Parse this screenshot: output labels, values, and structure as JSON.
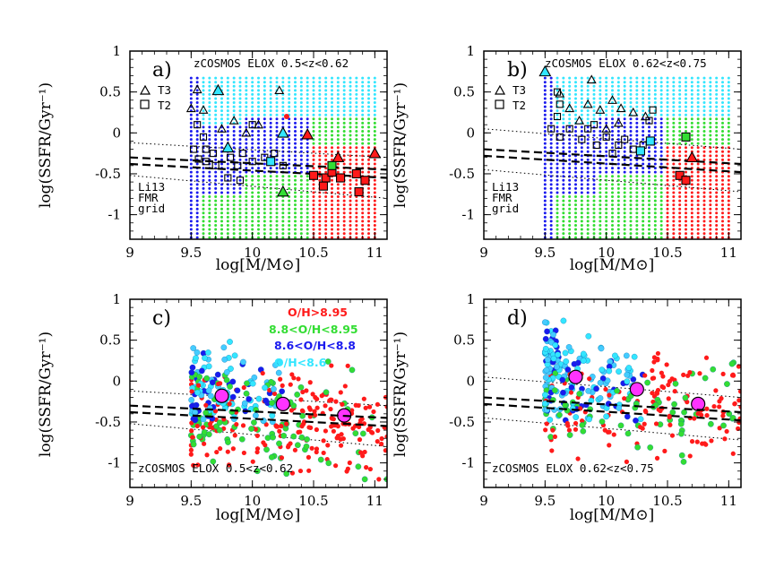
{
  "figure": {
    "xlabel": "log[M/M⊙]",
    "ylabel": "log(SSFR/Gyr⁻¹)"
  },
  "colors": {
    "red": "#ff1a1a",
    "green": "#33dd33",
    "blue": "#1a1aee",
    "cyan": "#33e6ff",
    "magenta": "#ff33ff",
    "lightblue": "#44ccff"
  },
  "chart_data": [
    {
      "id": "a",
      "type": "scatter",
      "panel_label": "a)",
      "title": "zCOSMOS ELOX 0.5<z<0.62",
      "legend": [
        {
          "symbol": "triangle",
          "label": "T3"
        },
        {
          "symbol": "square",
          "label": "T2"
        }
      ],
      "side_note": [
        "Li13",
        "FMR",
        "grid"
      ],
      "xlim": [
        9,
        11.1
      ],
      "ylim": [
        -1.3,
        1
      ],
      "xticks": [
        9,
        9.5,
        10,
        10.5,
        11
      ],
      "yticks": [
        -1,
        -0.5,
        0,
        0.5,
        1
      ],
      "xlabel": "log[M/M⊙]",
      "ylabel": "log(SSFR/Gyr⁻¹)",
      "grid": {
        "xmin": 9.5,
        "xmax": 11.0,
        "xstep": 0.05,
        "ymin": -1.28,
        "ymax": 0.68,
        "ystep": 0.05,
        "ranges": [
          {
            "x0": 9.5,
            "x1": 9.58,
            "color": "blue"
          },
          {
            "x0": 9.6,
            "x1": 9.9,
            "color": "green"
          },
          {
            "x0": 9.95,
            "x1": 10.5,
            "color": "mix"
          },
          {
            "x0": 10.5,
            "x1": 11.0,
            "color": "redgreen"
          }
        ]
      },
      "lines": {
        "dashed": [
          [
            9,
            -0.3,
            11.1,
            -0.45
          ],
          [
            9,
            -0.38,
            11.1,
            -0.55
          ]
        ],
        "dotted": [
          [
            9,
            -0.12,
            11.1,
            -0.3
          ],
          [
            9,
            -0.52,
            11.1,
            -0.8
          ]
        ]
      },
      "points": [
        {
          "x": 9.55,
          "y": 0.53,
          "s": "tri",
          "c": "none"
        },
        {
          "x": 9.72,
          "y": 0.52,
          "s": "tri",
          "c": "cyan"
        },
        {
          "x": 10.22,
          "y": 0.52,
          "s": "tri",
          "c": "none"
        },
        {
          "x": 9.5,
          "y": 0.3,
          "s": "tri",
          "c": "none"
        },
        {
          "x": 9.6,
          "y": 0.28,
          "s": "tri",
          "c": "none"
        },
        {
          "x": 9.85,
          "y": 0.15,
          "s": "tri",
          "c": "none"
        },
        {
          "x": 10.05,
          "y": 0.1,
          "s": "tri",
          "c": "none"
        },
        {
          "x": 9.75,
          "y": 0.05,
          "s": "tri",
          "c": "none"
        },
        {
          "x": 9.95,
          "y": 0.0,
          "s": "tri",
          "c": "none"
        },
        {
          "x": 10.25,
          "y": 0.0,
          "s": "tri",
          "c": "cyan"
        },
        {
          "x": 10.45,
          "y": -0.02,
          "s": "tri",
          "c": "red"
        },
        {
          "x": 9.8,
          "y": -0.18,
          "s": "tri",
          "c": "cyan"
        },
        {
          "x": 10.25,
          "y": -0.72,
          "s": "tri",
          "c": "green"
        },
        {
          "x": 11.0,
          "y": -0.25,
          "s": "tri",
          "c": "red"
        },
        {
          "x": 10.7,
          "y": -0.3,
          "s": "tri",
          "c": "red"
        },
        {
          "x": 9.55,
          "y": 0.1,
          "s": "sq",
          "c": "none"
        },
        {
          "x": 9.6,
          "y": -0.05,
          "s": "sq",
          "c": "none"
        },
        {
          "x": 9.52,
          "y": -0.2,
          "s": "sq",
          "c": "none"
        },
        {
          "x": 9.56,
          "y": -0.32,
          "s": "sq",
          "c": "none"
        },
        {
          "x": 9.62,
          "y": -0.35,
          "s": "sq",
          "c": "none"
        },
        {
          "x": 9.68,
          "y": -0.25,
          "s": "sq",
          "c": "none"
        },
        {
          "x": 9.7,
          "y": -0.4,
          "s": "sq",
          "c": "none"
        },
        {
          "x": 9.82,
          "y": -0.3,
          "s": "sq",
          "c": "none"
        },
        {
          "x": 9.88,
          "y": -0.4,
          "s": "sq",
          "c": "none"
        },
        {
          "x": 9.92,
          "y": -0.25,
          "s": "sq",
          "c": "none"
        },
        {
          "x": 10.0,
          "y": -0.35,
          "s": "sq",
          "c": "none"
        },
        {
          "x": 10.1,
          "y": -0.3,
          "s": "sq",
          "c": "none"
        },
        {
          "x": 10.18,
          "y": -0.25,
          "s": "sq",
          "c": "none"
        },
        {
          "x": 10.25,
          "y": -0.4,
          "s": "sq",
          "c": "none"
        },
        {
          "x": 9.8,
          "y": -0.55,
          "s": "sq",
          "c": "none"
        },
        {
          "x": 9.9,
          "y": -0.58,
          "s": "sq",
          "c": "none"
        },
        {
          "x": 9.62,
          "y": -0.2,
          "s": "sq",
          "c": "none"
        },
        {
          "x": 10.0,
          "y": 0.1,
          "s": "sq",
          "c": "none"
        },
        {
          "x": 10.15,
          "y": -0.35,
          "s": "sq",
          "c": "cyan"
        },
        {
          "x": 10.5,
          "y": -0.52,
          "s": "sq",
          "c": "red"
        },
        {
          "x": 10.6,
          "y": -0.55,
          "s": "sq",
          "c": "red"
        },
        {
          "x": 10.65,
          "y": -0.48,
          "s": "sq",
          "c": "red"
        },
        {
          "x": 10.72,
          "y": -0.55,
          "s": "sq",
          "c": "red"
        },
        {
          "x": 10.85,
          "y": -0.5,
          "s": "sq",
          "c": "red"
        },
        {
          "x": 10.92,
          "y": -0.58,
          "s": "sq",
          "c": "red"
        },
        {
          "x": 10.87,
          "y": -0.72,
          "s": "sq",
          "c": "red"
        },
        {
          "x": 10.58,
          "y": -0.65,
          "s": "sq",
          "c": "red"
        },
        {
          "x": 10.65,
          "y": -0.4,
          "s": "sq",
          "c": "green"
        },
        {
          "x": 10.28,
          "y": 0.2,
          "s": "dot",
          "c": "red"
        }
      ]
    },
    {
      "id": "b",
      "type": "scatter",
      "panel_label": "b)",
      "title": "zCOSMOS ELOX 0.62<z<0.75",
      "legend": [
        {
          "symbol": "triangle",
          "label": "T3"
        },
        {
          "symbol": "square",
          "label": "T2"
        }
      ],
      "side_note": [
        "Li13",
        "FMR",
        "grid"
      ],
      "xlim": [
        9,
        11.1
      ],
      "ylim": [
        -1.3,
        1
      ],
      "xticks": [
        9,
        9.5,
        10,
        10.5,
        11
      ],
      "yticks": [
        -1,
        -0.5,
        0,
        0.5,
        1
      ],
      "xlabel": "log[M/M⊙]",
      "ylabel": "log(SSFR/Gyr⁻¹)",
      "grid": {
        "xmin": 9.5,
        "xmax": 11.0,
        "xstep": 0.05,
        "ymin": -1.28,
        "ymax": 0.68,
        "ystep": 0.05,
        "ranges": [
          {
            "x0": 9.5,
            "x1": 9.58,
            "color": "blue"
          },
          {
            "x0": 9.6,
            "x1": 9.9,
            "color": "green"
          },
          {
            "x0": 9.95,
            "x1": 10.5,
            "color": "mix"
          },
          {
            "x0": 10.5,
            "x1": 11.0,
            "color": "redgreen"
          }
        ]
      },
      "lines": {
        "dashed": [
          [
            9,
            -0.2,
            11.1,
            -0.38
          ],
          [
            9,
            -0.28,
            11.1,
            -0.48
          ]
        ],
        "dotted": [
          [
            9,
            0.05,
            11.1,
            -0.2
          ],
          [
            9,
            -0.45,
            11.1,
            -0.72
          ]
        ]
      },
      "points": [
        {
          "x": 9.5,
          "y": 0.75,
          "s": "tri",
          "c": "cyan"
        },
        {
          "x": 9.62,
          "y": 0.48,
          "s": "tri",
          "c": "none"
        },
        {
          "x": 9.7,
          "y": 0.3,
          "s": "tri",
          "c": "none"
        },
        {
          "x": 9.85,
          "y": 0.35,
          "s": "tri",
          "c": "none"
        },
        {
          "x": 9.95,
          "y": 0.28,
          "s": "tri",
          "c": "none"
        },
        {
          "x": 10.05,
          "y": 0.4,
          "s": "tri",
          "c": "none"
        },
        {
          "x": 9.88,
          "y": 0.65,
          "s": "tri",
          "c": "none"
        },
        {
          "x": 10.12,
          "y": 0.3,
          "s": "tri",
          "c": "none"
        },
        {
          "x": 10.22,
          "y": 0.25,
          "s": "tri",
          "c": "none"
        },
        {
          "x": 10.32,
          "y": 0.2,
          "s": "tri",
          "c": "none"
        },
        {
          "x": 9.78,
          "y": 0.15,
          "s": "tri",
          "c": "none"
        },
        {
          "x": 10.0,
          "y": 0.05,
          "s": "tri",
          "c": "none"
        },
        {
          "x": 10.1,
          "y": 0.12,
          "s": "tri",
          "c": "none"
        },
        {
          "x": 10.7,
          "y": -0.3,
          "s": "tri",
          "c": "red"
        },
        {
          "x": 9.6,
          "y": 0.5,
          "s": "sq",
          "c": "none"
        },
        {
          "x": 9.62,
          "y": 0.35,
          "s": "sq",
          "c": "none"
        },
        {
          "x": 9.6,
          "y": 0.2,
          "s": "sq",
          "c": "none"
        },
        {
          "x": 9.55,
          "y": 0.05,
          "s": "sq",
          "c": "none"
        },
        {
          "x": 9.62,
          "y": -0.05,
          "s": "sq",
          "c": "none"
        },
        {
          "x": 9.7,
          "y": 0.05,
          "s": "sq",
          "c": "none"
        },
        {
          "x": 9.8,
          "y": -0.08,
          "s": "sq",
          "c": "none"
        },
        {
          "x": 9.85,
          "y": 0.05,
          "s": "sq",
          "c": "none"
        },
        {
          "x": 9.92,
          "y": -0.15,
          "s": "sq",
          "c": "none"
        },
        {
          "x": 10.0,
          "y": -0.05,
          "s": "sq",
          "c": "none"
        },
        {
          "x": 10.05,
          "y": -0.25,
          "s": "sq",
          "c": "none"
        },
        {
          "x": 10.15,
          "y": -0.08,
          "s": "sq",
          "c": "none"
        },
        {
          "x": 10.22,
          "y": -0.2,
          "s": "sq",
          "c": "none"
        },
        {
          "x": 10.3,
          "y": -0.15,
          "s": "sq",
          "c": "none"
        },
        {
          "x": 10.35,
          "y": 0.15,
          "s": "sq",
          "c": "none"
        },
        {
          "x": 10.38,
          "y": 0.28,
          "s": "sq",
          "c": "none"
        },
        {
          "x": 9.9,
          "y": 0.1,
          "s": "sq",
          "c": "none"
        },
        {
          "x": 10.1,
          "y": -0.15,
          "s": "sq",
          "c": "none"
        },
        {
          "x": 10.28,
          "y": -0.22,
          "s": "sq",
          "c": "cyan"
        },
        {
          "x": 10.36,
          "y": -0.1,
          "s": "sq",
          "c": "cyan"
        },
        {
          "x": 10.65,
          "y": -0.05,
          "s": "sq",
          "c": "green"
        },
        {
          "x": 10.6,
          "y": -0.52,
          "s": "sq",
          "c": "red"
        },
        {
          "x": 10.65,
          "y": -0.58,
          "s": "sq",
          "c": "red"
        }
      ]
    },
    {
      "id": "c",
      "type": "scatter",
      "panel_label": "c)",
      "title": "zCOSMOS ELOX 0.5<z<0.62",
      "legend": [
        {
          "label": "O/H>8.95",
          "color": "red"
        },
        {
          "label": "8.8<O/H<8.95",
          "color": "green"
        },
        {
          "label": "8.6<O/H<8.8",
          "color": "blue"
        },
        {
          "label": "O/H<8.6",
          "color": "cyan"
        }
      ],
      "xlim": [
        9,
        11.1
      ],
      "ylim": [
        -1.3,
        1
      ],
      "xticks": [
        9,
        9.5,
        10,
        10.5,
        11
      ],
      "yticks": [
        -1,
        -0.5,
        0,
        0.5,
        1
      ],
      "xlabel": "log[M/M⊙]",
      "ylabel": "log(SSFR/Gyr⁻¹)",
      "lines": {
        "dashed": [
          [
            9,
            -0.3,
            11.1,
            -0.45
          ],
          [
            9,
            -0.38,
            11.1,
            -0.55
          ]
        ],
        "dotted": [
          [
            9,
            -0.12,
            11.1,
            -0.3
          ],
          [
            9,
            -0.52,
            11.1,
            -0.8
          ]
        ]
      },
      "cloud": {
        "seed": 11,
        "n": 420,
        "xmin": 9.5,
        "xmax": 11.1,
        "ymin": -1.2,
        "ymax": 0.7,
        "center": -0.35,
        "spread": 0.35
      },
      "binned": [
        {
          "x": 9.75,
          "y": -0.18
        },
        {
          "x": 10.25,
          "y": -0.28
        },
        {
          "x": 10.75,
          "y": -0.42
        }
      ]
    },
    {
      "id": "d",
      "type": "scatter",
      "panel_label": "d)",
      "title": "zCOSMOS ELOX 0.62<z<0.75",
      "xlim": [
        9,
        11.1
      ],
      "ylim": [
        -1.3,
        1
      ],
      "xticks": [
        9,
        9.5,
        10,
        10.5,
        11
      ],
      "yticks": [
        -1,
        -0.5,
        0,
        0.5,
        1
      ],
      "xlabel": "log[M/M⊙]",
      "ylabel": "log(SSFR/Gyr⁻¹)",
      "lines": {
        "dashed": [
          [
            9,
            -0.2,
            11.1,
            -0.38
          ],
          [
            9,
            -0.28,
            11.1,
            -0.48
          ]
        ],
        "dotted": [
          [
            9,
            0.05,
            11.1,
            -0.2
          ],
          [
            9,
            -0.45,
            11.1,
            -0.72
          ]
        ]
      },
      "cloud": {
        "seed": 29,
        "n": 380,
        "xmin": 9.5,
        "xmax": 11.1,
        "ymin": -1.1,
        "ymax": 0.85,
        "center": -0.12,
        "spread": 0.35
      },
      "binned": [
        {
          "x": 9.75,
          "y": 0.05
        },
        {
          "x": 10.25,
          "y": -0.1
        },
        {
          "x": 10.75,
          "y": -0.28
        }
      ]
    }
  ]
}
